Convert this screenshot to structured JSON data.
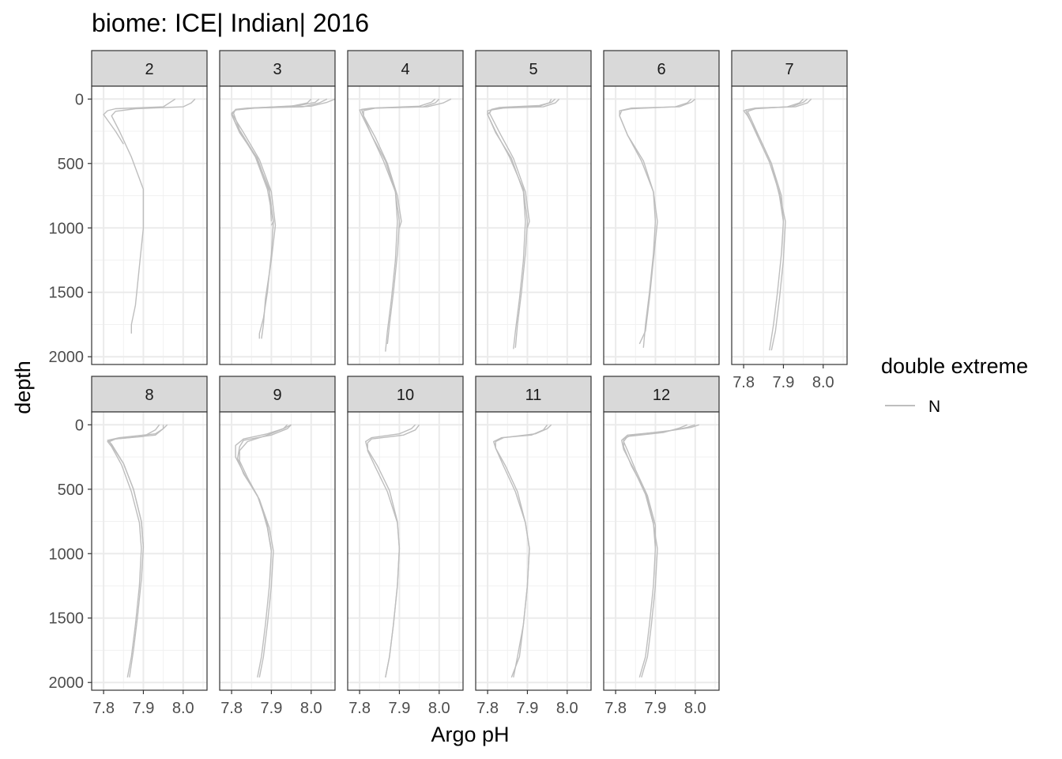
{
  "chart_data": {
    "type": "line",
    "title": "biome: ICE| Indian| 2016",
    "xlabel": "Argo pH",
    "ylabel": "depth",
    "xlim": [
      7.77,
      8.06
    ],
    "ylim": [
      2060,
      -100
    ],
    "y_reversed": true,
    "x_ticks": [
      7.8,
      7.9,
      8.0
    ],
    "x_tick_labels": [
      "7.8",
      "7.9",
      "8.0"
    ],
    "y_ticks": [
      0,
      500,
      1000,
      1500,
      2000
    ],
    "y_tick_labels": [
      "0",
      "500",
      "1000",
      "1500",
      "2000"
    ],
    "grid": true,
    "facet_by": "month",
    "legend": {
      "title": "double extreme",
      "placement": "right",
      "entries": [
        {
          "label": "N",
          "color": "#bebebe"
        }
      ]
    },
    "line_color": "#bebebe",
    "panels": [
      {
        "label": "2",
        "profiles": [
          {
            "x": [
              7.98,
              7.97,
              7.95,
              7.83,
              7.81,
              7.8,
              7.83,
              7.85
            ],
            "y": [
              0,
              20,
              60,
              75,
              90,
              120,
              250,
              350
            ]
          },
          {
            "x": [
              8.03,
              8.02,
              8.0,
              7.88,
              7.83,
              7.82,
              7.84,
              7.87,
              7.9,
              7.9,
              7.89,
              7.88,
              7.87,
              7.87
            ],
            "y": [
              0,
              30,
              60,
              75,
              95,
              130,
              250,
              450,
              700,
              1000,
              1300,
              1600,
              1750,
              1820
            ]
          }
        ]
      },
      {
        "label": "3",
        "profiles": [
          {
            "x": [
              8.04,
              8.02,
              7.98,
              7.85,
              7.81,
              7.8,
              7.82,
              7.86,
              7.89,
              7.905,
              7.9,
              7.89,
              7.88,
              7.87,
              7.87
            ],
            "y": [
              0,
              30,
              60,
              70,
              85,
              120,
              250,
              450,
              700,
              950,
              1200,
              1500,
              1700,
              1820,
              1860
            ]
          },
          {
            "x": [
              8.06,
              8.04,
              8.0,
              7.86,
              7.81,
              7.8,
              7.83,
              7.87,
              7.9,
              7.91,
              7.9,
              7.885,
              7.88,
              7.875
            ],
            "y": [
              0,
              25,
              55,
              70,
              85,
              110,
              260,
              470,
              720,
              980,
              1250,
              1550,
              1750,
              1860
            ]
          },
          {
            "x": [
              8.0,
              7.99,
              7.95,
              7.84,
              7.81,
              7.805,
              7.82,
              7.86,
              7.895,
              7.9
            ],
            "y": [
              0,
              30,
              55,
              70,
              80,
              110,
              240,
              440,
              700,
              950
            ]
          },
          {
            "x": [
              8.02,
              8.01,
              7.97,
              7.85,
              7.81,
              7.8,
              7.82,
              7.865,
              7.895,
              7.905,
              7.9
            ],
            "y": [
              0,
              25,
              50,
              70,
              85,
              120,
              260,
              460,
              720,
              950,
              980
            ]
          }
        ]
      },
      {
        "label": "4",
        "profiles": [
          {
            "x": [
              8.03,
              8.01,
              7.97,
              7.84,
              7.8,
              7.805,
              7.83,
              7.86,
              7.89,
              7.9,
              7.895,
              7.885,
              7.875,
              7.87
            ],
            "y": [
              0,
              30,
              60,
              70,
              85,
              120,
              280,
              480,
              720,
              950,
              1200,
              1500,
              1750,
              1900
            ]
          },
          {
            "x": [
              7.99,
              7.98,
              7.95,
              7.83,
              7.805,
              7.81,
              7.84,
              7.87,
              7.895,
              7.905,
              7.9
            ],
            "y": [
              0,
              25,
              55,
              70,
              80,
              130,
              300,
              500,
              750,
              950,
              1000
            ]
          },
          {
            "x": [
              8.0,
              7.99,
              7.96,
              7.84,
              7.81,
              7.81,
              7.83,
              7.865,
              7.89,
              7.895,
              7.89,
              7.88,
              7.87,
              7.865
            ],
            "y": [
              0,
              30,
              60,
              70,
              90,
              130,
              280,
              480,
              720,
              950,
              1250,
              1550,
              1800,
              1960
            ]
          }
        ]
      },
      {
        "label": "5",
        "profiles": [
          {
            "x": [
              7.98,
              7.97,
              7.94,
              7.84,
              7.81,
              7.8,
              7.82,
              7.855,
              7.89,
              7.9,
              7.895,
              7.885,
              7.875,
              7.87
            ],
            "y": [
              0,
              30,
              60,
              70,
              85,
              120,
              250,
              450,
              700,
              950,
              1200,
              1500,
              1750,
              1930
            ]
          },
          {
            "x": [
              7.97,
              7.96,
              7.93,
              7.83,
              7.81,
              7.805,
              7.83,
              7.865,
              7.895,
              7.905,
              7.9
            ],
            "y": [
              0,
              25,
              50,
              65,
              80,
              110,
              260,
              460,
              720,
              950,
              1000
            ]
          },
          {
            "x": [
              7.96,
              7.955,
              7.93,
              7.83,
              7.8,
              7.8,
              7.82,
              7.86,
              7.89,
              7.895,
              7.89,
              7.88,
              7.87,
              7.865
            ],
            "y": [
              0,
              30,
              55,
              70,
              90,
              120,
              260,
              460,
              720,
              950,
              1250,
              1550,
              1800,
              1940
            ]
          }
        ]
      },
      {
        "label": "6",
        "profiles": [
          {
            "x": [
              8.0,
              7.99,
              7.96,
              7.84,
              7.81,
              7.81,
              7.83,
              7.87,
              7.895,
              7.9,
              7.895,
              7.885,
              7.875,
              7.87
            ],
            "y": [
              0,
              25,
              60,
              70,
              90,
              130,
              280,
              480,
              720,
              950,
              1200,
              1500,
              1750,
              1930
            ]
          },
          {
            "x": [
              7.99,
              7.98,
              7.95,
              7.84,
              7.815,
              7.81,
              7.83,
              7.865,
              7.895,
              7.905,
              7.895,
              7.885,
              7.875,
              7.86
            ],
            "y": [
              0,
              30,
              60,
              75,
              90,
              130,
              280,
              480,
              720,
              950,
              1250,
              1550,
              1800,
              1900
            ]
          }
        ]
      },
      {
        "label": "7",
        "profiles": [
          {
            "x": [
              7.96,
              7.95,
              7.92,
              7.83,
              7.8,
              7.81,
              7.84,
              7.87,
              7.895,
              7.9,
              7.895,
              7.885,
              7.875,
              7.865
            ],
            "y": [
              0,
              25,
              60,
              70,
              90,
              130,
              300,
              500,
              750,
              950,
              1200,
              1500,
              1750,
              1950
            ]
          },
          {
            "x": [
              7.97,
              7.96,
              7.93,
              7.83,
              7.805,
              7.81,
              7.835,
              7.865,
              7.89,
              7.905,
              7.9,
              7.89,
              7.88,
              7.87
            ],
            "y": [
              0,
              30,
              60,
              70,
              85,
              120,
              290,
              490,
              730,
              950,
              1250,
              1550,
              1800,
              1950
            ]
          },
          {
            "x": [
              7.95,
              7.94,
              7.91,
              7.83,
              7.81,
              7.815,
              7.84,
              7.87,
              7.89,
              7.9
            ],
            "y": [
              0,
              30,
              60,
              75,
              95,
              130,
              300,
              500,
              750,
              950
            ]
          }
        ]
      },
      {
        "label": "8",
        "profiles": [
          {
            "x": [
              7.96,
              7.95,
              7.93,
              7.84,
              7.81,
              7.82,
              7.85,
              7.875,
              7.895,
              7.9,
              7.895,
              7.885,
              7.875,
              7.865
            ],
            "y": [
              0,
              30,
              70,
              100,
              120,
              150,
              300,
              500,
              750,
              950,
              1200,
              1500,
              1750,
              1960
            ]
          },
          {
            "x": [
              7.95,
              7.95,
              7.93,
              7.83,
              7.81,
              7.82,
              7.845,
              7.87,
              7.89,
              7.895,
              7.89,
              7.88,
              7.87,
              7.86
            ],
            "y": [
              0,
              30,
              80,
              110,
              130,
              170,
              310,
              520,
              760,
              960,
              1250,
              1550,
              1800,
              1960
            ]
          },
          {
            "x": [
              7.94,
              7.93,
              7.9,
              7.83,
              7.815,
              7.82,
              7.85,
              7.875,
              7.895,
              7.9
            ],
            "y": [
              0,
              40,
              90,
              110,
              130,
              160,
              300,
              500,
              750,
              950
            ]
          }
        ]
      },
      {
        "label": "9",
        "profiles": [
          {
            "x": [
              7.95,
              7.94,
              7.9,
              7.83,
              7.82,
              7.815,
              7.83,
              7.865,
              7.89,
              7.9,
              7.895,
              7.885,
              7.875,
              7.865
            ],
            "y": [
              0,
              30,
              80,
              120,
              170,
              260,
              380,
              550,
              780,
              980,
              1250,
              1550,
              1800,
              1960
            ]
          },
          {
            "x": [
              7.94,
              7.93,
              7.89,
              7.83,
              7.81,
              7.81,
              7.835,
              7.87,
              7.895,
              7.905,
              7.9,
              7.89,
              7.88,
              7.87
            ],
            "y": [
              0,
              30,
              70,
              110,
              160,
              250,
              400,
              580,
              800,
              980,
              1250,
              1550,
              1800,
              1960
            ]
          },
          {
            "x": [
              7.95,
              7.93,
              7.89,
              7.84,
              7.82,
              7.82,
              7.84,
              7.87,
              7.89,
              7.9
            ],
            "y": [
              0,
              30,
              80,
              130,
              200,
              280,
              410,
              580,
              800,
              980
            ]
          }
        ]
      },
      {
        "label": "10",
        "profiles": [
          {
            "x": [
              7.95,
              7.94,
              7.91,
              7.83,
              7.82,
              7.82,
              7.84,
              7.87,
              7.895,
              7.9,
              7.895,
              7.885,
              7.875,
              7.865
            ],
            "y": [
              0,
              40,
              80,
              110,
              140,
              200,
              330,
              520,
              760,
              960,
              1250,
              1550,
              1800,
              1960
            ]
          },
          {
            "x": [
              7.94,
              7.93,
              7.9,
              7.83,
              7.815,
              7.82,
              7.845,
              7.875,
              7.895,
              7.9,
              7.895,
              7.885,
              7.875,
              7.865
            ],
            "y": [
              0,
              30,
              70,
              100,
              130,
              190,
              320,
              510,
              750,
              960,
              1250,
              1550,
              1800,
              1960
            ]
          }
        ]
      },
      {
        "label": "11",
        "profiles": [
          {
            "x": [
              7.96,
              7.95,
              7.92,
              7.84,
              7.82,
              7.82,
              7.84,
              7.87,
              7.895,
              7.905,
              7.9,
              7.89,
              7.88,
              7.86
            ],
            "y": [
              0,
              30,
              70,
              100,
              130,
              180,
              320,
              520,
              760,
              960,
              1250,
              1550,
              1800,
              1960
            ]
          },
          {
            "x": [
              7.95,
              7.94,
              7.91,
              7.835,
              7.815,
              7.82,
              7.845,
              7.875,
              7.895,
              7.905,
              7.9,
              7.89,
              7.875,
              7.865
            ],
            "y": [
              0,
              40,
              80,
              100,
              130,
              180,
              320,
              520,
              760,
              960,
              1250,
              1550,
              1800,
              1960
            ]
          }
        ]
      },
      {
        "label": "12",
        "profiles": [
          {
            "x": [
              8.01,
              7.99,
              7.95,
              7.84,
              7.82,
              7.82,
              7.84,
              7.875,
              7.895,
              7.9,
              7.895,
              7.885,
              7.875,
              7.86
            ],
            "y": [
              0,
              20,
              40,
              80,
              110,
              170,
              320,
              520,
              760,
              960,
              1250,
              1550,
              1800,
              1960
            ]
          },
          {
            "x": [
              8.0,
              7.98,
              7.93,
              7.83,
              7.815,
              7.82,
              7.845,
              7.875,
              7.895,
              7.905,
              7.9,
              7.89,
              7.88,
              7.865
            ],
            "y": [
              0,
              20,
              50,
              80,
              120,
              190,
              340,
              540,
              770,
              960,
              1250,
              1550,
              1800,
              1960
            ]
          },
          {
            "x": [
              7.98,
              7.96,
              7.92,
              7.83,
              7.82,
              7.83,
              7.85,
              7.88,
              7.9,
              7.9
            ],
            "y": [
              0,
              25,
              60,
              90,
              130,
              200,
              350,
              550,
              780,
              960
            ]
          }
        ]
      }
    ]
  }
}
